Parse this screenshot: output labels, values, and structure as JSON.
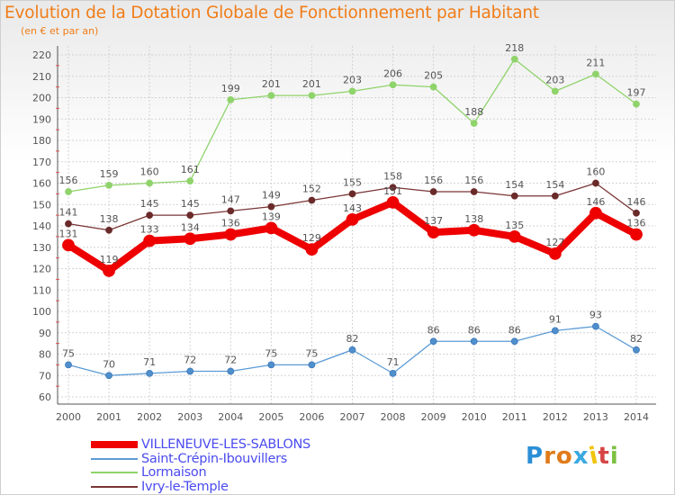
{
  "header": {
    "title": "Evolution de la Dotation Globale de Fonctionnement par Habitant",
    "subtitle": "(en € et par an)"
  },
  "chart_data": {
    "type": "line",
    "title": "Evolution de la Dotation Globale de Fonctionnement par Habitant",
    "subtitle": "(en € et par an)",
    "x": [
      "2000",
      "2001",
      "2002",
      "2003",
      "2004",
      "2005",
      "2006",
      "2007",
      "2008",
      "2009",
      "2010",
      "2011",
      "2012",
      "2013",
      "2014"
    ],
    "ylim": [
      60,
      220
    ],
    "yticks": [
      60,
      70,
      80,
      90,
      100,
      110,
      120,
      130,
      140,
      150,
      160,
      170,
      180,
      190,
      200,
      210,
      220
    ],
    "grid": true,
    "legend_position": "bottom-left",
    "series": [
      {
        "name": "VILLENEUVE-LES-SABLONS",
        "color": "#ee0000",
        "values": [
          131,
          119,
          133,
          134,
          136,
          139,
          129,
          143,
          151,
          137,
          138,
          135,
          127,
          146,
          136
        ]
      },
      {
        "name": "Saint-Crépin-Ibouvillers",
        "color": "#5b9bd5",
        "values": [
          75,
          70,
          71,
          72,
          72,
          75,
          75,
          82,
          71,
          86,
          86,
          86,
          91,
          93,
          82
        ]
      },
      {
        "name": "Lormaison",
        "color": "#8fd36b",
        "values": [
          156,
          159,
          160,
          161,
          199,
          201,
          201,
          203,
          206,
          205,
          188,
          218,
          203,
          211,
          197
        ]
      },
      {
        "name": "Ivry-le-Temple",
        "color": "#7a3535",
        "values": [
          141,
          138,
          145,
          145,
          147,
          149,
          152,
          155,
          158,
          156,
          156,
          154,
          154,
          160,
          146
        ]
      }
    ]
  },
  "legend": {
    "items": [
      {
        "label": "VILLENEUVE-LES-SABLONS",
        "color": "#ee0000"
      },
      {
        "label": "Saint-Crépin-Ibouvillers",
        "color": "#5b9bd5"
      },
      {
        "label": "Lormaison",
        "color": "#8fd36b"
      },
      {
        "label": "Ivry-le-Temple",
        "color": "#7a3535"
      }
    ]
  },
  "logo": {
    "text": "Proxiti",
    "letter_colors": [
      "#2b8fd6",
      "#e07b1a",
      "#e07b1a",
      "#3aa9e0",
      "#f1c40f",
      "#d64545",
      "#7cc242"
    ]
  }
}
